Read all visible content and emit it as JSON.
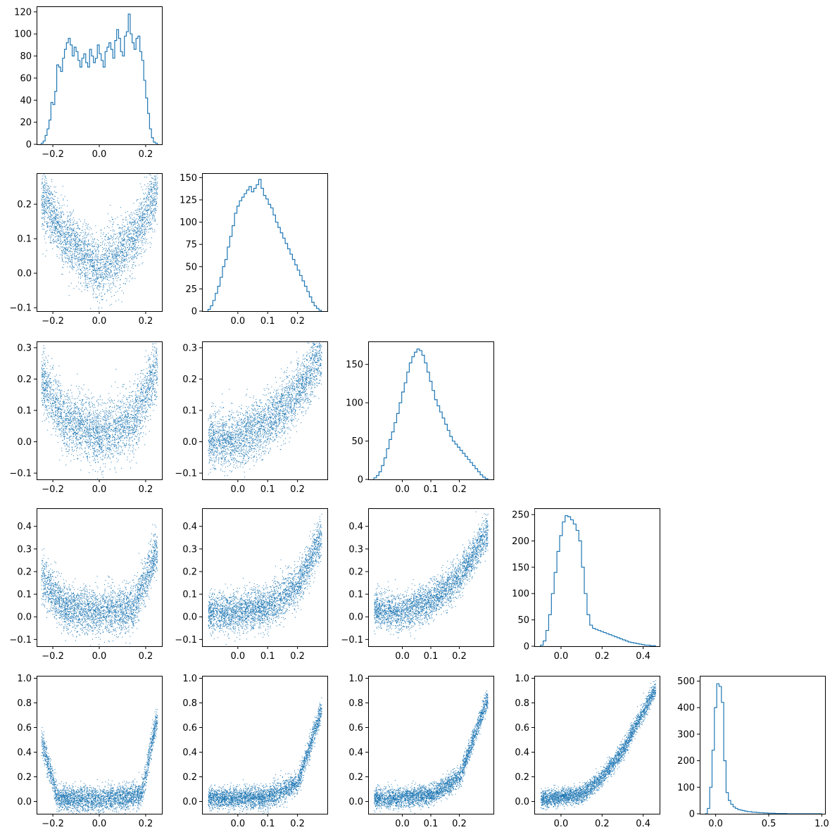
{
  "series_color": "#1f77b4",
  "chart_data": [
    {
      "id": "hist-1",
      "type": "bar",
      "style": "step",
      "row": 0,
      "col": 0,
      "bin_range": [
        -0.25,
        0.25
      ],
      "values": [
        1,
        3,
        8,
        14,
        22,
        38,
        36,
        48,
        72,
        70,
        66,
        78,
        86,
        92,
        96,
        90,
        80,
        88,
        84,
        76,
        70,
        78,
        82,
        74,
        70,
        86,
        80,
        74,
        78,
        90,
        82,
        76,
        70,
        84,
        88,
        92,
        86,
        78,
        94,
        104,
        96,
        84,
        80,
        98,
        102,
        118,
        100,
        92,
        86,
        96,
        98,
        84,
        76,
        58,
        42,
        28,
        14,
        6,
        2,
        1
      ],
      "xlim": [
        -0.27,
        0.27
      ],
      "ylim": [
        0,
        125
      ],
      "xticks": [
        -0.2,
        0.0,
        0.2
      ],
      "xtick_labels": [
        "−0.2",
        "0.0",
        "0.2"
      ],
      "yticks": [
        0,
        20,
        40,
        60,
        80,
        100,
        120
      ],
      "ytick_labels": [
        "0",
        "20",
        "40",
        "60",
        "80",
        "100",
        "120"
      ]
    },
    {
      "id": "scatter-2-1",
      "type": "scatter",
      "row": 1,
      "col": 0,
      "description_curve": "u-shape",
      "x_range": [
        -0.25,
        0.25
      ],
      "y_trend": [
        [
          -0.25,
          0.22
        ],
        [
          -0.15,
          0.1
        ],
        [
          0.0,
          0.01
        ],
        [
          0.15,
          0.1
        ],
        [
          0.25,
          0.24
        ]
      ],
      "y_spread": 0.045,
      "xlim": [
        -0.27,
        0.27
      ],
      "ylim": [
        -0.11,
        0.29
      ],
      "xticks": [
        -0.2,
        0.0,
        0.2
      ],
      "xtick_labels": [
        "−0.2",
        "0.0",
        "0.2"
      ],
      "yticks": [
        -0.1,
        0.0,
        0.1,
        0.2
      ],
      "ytick_labels": [
        "−0.1",
        "0.0",
        "0.1",
        "0.2"
      ]
    },
    {
      "id": "hist-2",
      "type": "bar",
      "style": "step",
      "row": 1,
      "col": 1,
      "bin_range": [
        -0.1,
        0.28
      ],
      "values": [
        2,
        6,
        12,
        20,
        28,
        38,
        50,
        58,
        72,
        84,
        96,
        110,
        118,
        124,
        128,
        132,
        136,
        140,
        134,
        138,
        142,
        148,
        138,
        130,
        126,
        120,
        116,
        108,
        100,
        94,
        88,
        82,
        76,
        70,
        64,
        58,
        52,
        46,
        40,
        34,
        28,
        22,
        16,
        10,
        6,
        3,
        1
      ],
      "xlim": [
        -0.12,
        0.3
      ],
      "ylim": [
        0,
        155
      ],
      "xticks": [
        0.0,
        0.1,
        0.2
      ],
      "xtick_labels": [
        "0.0",
        "0.1",
        "0.2"
      ],
      "yticks": [
        0,
        25,
        50,
        75,
        100,
        125,
        150
      ],
      "ytick_labels": [
        "0",
        "25",
        "50",
        "75",
        "100",
        "125",
        "150"
      ]
    },
    {
      "id": "scatter-3-1",
      "type": "scatter",
      "row": 2,
      "col": 0,
      "x_range": [
        -0.25,
        0.25
      ],
      "y_trend": [
        [
          -0.25,
          0.2
        ],
        [
          -0.15,
          0.07
        ],
        [
          0.0,
          0.02
        ],
        [
          0.15,
          0.07
        ],
        [
          0.25,
          0.24
        ]
      ],
      "y_spread": 0.05,
      "xlim": [
        -0.27,
        0.27
      ],
      "ylim": [
        -0.12,
        0.32
      ],
      "xticks": [
        -0.2,
        0.0,
        0.2
      ],
      "xtick_labels": [
        "−0.2",
        "0.0",
        "0.2"
      ],
      "yticks": [
        -0.1,
        0.0,
        0.1,
        0.2,
        0.3
      ],
      "ytick_labels": [
        "−0.1",
        "0.0",
        "0.1",
        "0.2",
        "0.3"
      ]
    },
    {
      "id": "scatter-3-2",
      "type": "scatter",
      "row": 2,
      "col": 1,
      "x_range": [
        -0.1,
        0.28
      ],
      "y_trend": [
        [
          -0.1,
          0.0
        ],
        [
          0.0,
          0.01
        ],
        [
          0.1,
          0.06
        ],
        [
          0.2,
          0.16
        ],
        [
          0.28,
          0.28
        ]
      ],
      "y_spread": 0.045,
      "xlim": [
        -0.12,
        0.3
      ],
      "ylim": [
        -0.12,
        0.32
      ],
      "xticks": [
        0.0,
        0.1,
        0.2
      ],
      "xtick_labels": [
        "0.0",
        "0.1",
        "0.2"
      ],
      "yticks": [
        -0.1,
        0.0,
        0.1,
        0.2,
        0.3
      ],
      "ytick_labels": [
        "−0.1",
        "0.0",
        "0.1",
        "0.2",
        "0.3"
      ]
    },
    {
      "id": "hist-3",
      "type": "bar",
      "style": "step",
      "row": 2,
      "col": 2,
      "bin_range": [
        -0.1,
        0.3
      ],
      "values": [
        2,
        5,
        10,
        18,
        28,
        40,
        52,
        62,
        74,
        86,
        100,
        114,
        126,
        140,
        152,
        160,
        166,
        170,
        168,
        162,
        152,
        140,
        128,
        116,
        104,
        96,
        88,
        80,
        72,
        64,
        56,
        50,
        46,
        42,
        38,
        34,
        30,
        26,
        22,
        18,
        14,
        10,
        6,
        3,
        1
      ],
      "xlim": [
        -0.12,
        0.32
      ],
      "ylim": [
        0,
        180
      ],
      "xticks": [
        0.0,
        0.1,
        0.2
      ],
      "xtick_labels": [
        "0.0",
        "0.1",
        "0.2"
      ],
      "yticks": [
        0,
        50,
        100,
        150
      ],
      "ytick_labels": [
        "0",
        "50",
        "100",
        "150"
      ]
    },
    {
      "id": "scatter-4-1",
      "type": "scatter",
      "row": 3,
      "col": 0,
      "x_range": [
        -0.25,
        0.25
      ],
      "y_trend": [
        [
          -0.25,
          0.18
        ],
        [
          -0.15,
          0.04
        ],
        [
          0.0,
          0.02
        ],
        [
          0.15,
          0.04
        ],
        [
          0.25,
          0.3
        ]
      ],
      "y_spread": 0.05,
      "xlim": [
        -0.27,
        0.27
      ],
      "ylim": [
        -0.13,
        0.48
      ],
      "xticks": [
        -0.2,
        0.0,
        0.2
      ],
      "xtick_labels": [
        "−0.2",
        "0.0",
        "0.2"
      ],
      "yticks": [
        -0.1,
        0.0,
        0.1,
        0.2,
        0.3,
        0.4
      ],
      "ytick_labels": [
        "−0.1",
        "0.0",
        "0.1",
        "0.2",
        "0.3",
        "0.4"
      ]
    },
    {
      "id": "scatter-4-2",
      "type": "scatter",
      "row": 3,
      "col": 1,
      "x_range": [
        -0.1,
        0.28
      ],
      "y_trend": [
        [
          -0.1,
          0.02
        ],
        [
          0.0,
          0.02
        ],
        [
          0.1,
          0.04
        ],
        [
          0.2,
          0.14
        ],
        [
          0.28,
          0.36
        ]
      ],
      "y_spread": 0.045,
      "xlim": [
        -0.12,
        0.3
      ],
      "ylim": [
        -0.13,
        0.48
      ],
      "xticks": [
        0.0,
        0.1,
        0.2
      ],
      "xtick_labels": [
        "0.0",
        "0.1",
        "0.2"
      ],
      "yticks": [
        -0.1,
        0.0,
        0.1,
        0.2,
        0.3,
        0.4
      ],
      "ytick_labels": [
        "−0.1",
        "0.0",
        "0.1",
        "0.2",
        "0.3",
        "0.4"
      ]
    },
    {
      "id": "scatter-4-3",
      "type": "scatter",
      "row": 3,
      "col": 2,
      "x_range": [
        -0.1,
        0.3
      ],
      "y_trend": [
        [
          -0.1,
          0.03
        ],
        [
          0.0,
          0.02
        ],
        [
          0.1,
          0.07
        ],
        [
          0.2,
          0.18
        ],
        [
          0.3,
          0.38
        ]
      ],
      "y_spread": 0.04,
      "xlim": [
        -0.12,
        0.32
      ],
      "ylim": [
        -0.13,
        0.48
      ],
      "xticks": [
        0.0,
        0.1,
        0.2
      ],
      "xtick_labels": [
        "0.0",
        "0.1",
        "0.2"
      ],
      "yticks": [
        -0.1,
        0.0,
        0.1,
        0.2,
        0.3,
        0.4
      ],
      "ytick_labels": [
        "−0.1",
        "0.0",
        "0.1",
        "0.2",
        "0.3",
        "0.4"
      ]
    },
    {
      "id": "hist-4",
      "type": "bar",
      "style": "step",
      "row": 3,
      "col": 3,
      "bin_range": [
        -0.1,
        0.46
      ],
      "values": [
        2,
        10,
        30,
        60,
        100,
        140,
        180,
        210,
        236,
        248,
        246,
        240,
        232,
        220,
        200,
        150,
        100,
        60,
        40,
        34,
        32,
        30,
        28,
        26,
        24,
        22,
        20,
        18,
        16,
        14,
        12,
        10,
        8,
        7,
        6,
        5,
        4,
        3,
        2,
        2,
        1,
        1
      ],
      "xlim": [
        -0.13,
        0.48
      ],
      "ylim": [
        0,
        262
      ],
      "xticks": [
        0.0,
        0.2,
        0.4
      ],
      "xtick_labels": [
        "0.0",
        "0.2",
        "0.4"
      ],
      "yticks": [
        0,
        50,
        100,
        150,
        200,
        250
      ],
      "ytick_labels": [
        "0",
        "50",
        "100",
        "150",
        "200",
        "250"
      ]
    },
    {
      "id": "scatter-5-1",
      "type": "scatter",
      "row": 4,
      "col": 0,
      "x_range": [
        -0.25,
        0.25
      ],
      "y_trend": [
        [
          -0.25,
          0.5
        ],
        [
          -0.18,
          0.03
        ],
        [
          0.0,
          0.02
        ],
        [
          0.18,
          0.05
        ],
        [
          0.25,
          0.7
        ]
      ],
      "y_spread": 0.05,
      "xlim": [
        -0.27,
        0.27
      ],
      "ylim": [
        -0.1,
        1.02
      ],
      "xticks": [
        -0.2,
        0.0,
        0.2
      ],
      "xtick_labels": [
        "−0.2",
        "0.0",
        "0.2"
      ],
      "yticks": [
        0.0,
        0.2,
        0.4,
        0.6,
        0.8,
        1.0
      ],
      "ytick_labels": [
        "0.0",
        "0.2",
        "0.4",
        "0.6",
        "0.8",
        "1.0"
      ]
    },
    {
      "id": "scatter-5-2",
      "type": "scatter",
      "row": 4,
      "col": 1,
      "x_range": [
        -0.1,
        0.28
      ],
      "y_trend": [
        [
          -0.1,
          0.03
        ],
        [
          0.1,
          0.03
        ],
        [
          0.2,
          0.15
        ],
        [
          0.28,
          0.75
        ]
      ],
      "y_spread": 0.045,
      "xlim": [
        -0.12,
        0.3
      ],
      "ylim": [
        -0.1,
        1.02
      ],
      "xticks": [
        0.0,
        0.1,
        0.2
      ],
      "xtick_labels": [
        "0.0",
        "0.1",
        "0.2"
      ],
      "yticks": [
        0.0,
        0.2,
        0.4,
        0.6,
        0.8,
        1.0
      ],
      "ytick_labels": [
        "0.0",
        "0.2",
        "0.4",
        "0.6",
        "0.8",
        "1.0"
      ]
    },
    {
      "id": "scatter-5-3",
      "type": "scatter",
      "row": 4,
      "col": 2,
      "x_range": [
        -0.1,
        0.3
      ],
      "y_trend": [
        [
          -0.1,
          0.02
        ],
        [
          0.1,
          0.05
        ],
        [
          0.2,
          0.2
        ],
        [
          0.3,
          0.85
        ]
      ],
      "y_spread": 0.04,
      "xlim": [
        -0.12,
        0.32
      ],
      "ylim": [
        -0.1,
        1.02
      ],
      "xticks": [
        0.0,
        0.1,
        0.2
      ],
      "xtick_labels": [
        "0.0",
        "0.1",
        "0.2"
      ],
      "yticks": [
        0.0,
        0.2,
        0.4,
        0.6,
        0.8,
        1.0
      ],
      "ytick_labels": [
        "0.0",
        "0.2",
        "0.4",
        "0.6",
        "0.8",
        "1.0"
      ]
    },
    {
      "id": "scatter-5-4",
      "type": "scatter",
      "row": 4,
      "col": 3,
      "x_range": [
        -0.1,
        0.46
      ],
      "y_trend": [
        [
          -0.1,
          0.02
        ],
        [
          0.1,
          0.06
        ],
        [
          0.2,
          0.2
        ],
        [
          0.3,
          0.42
        ],
        [
          0.46,
          0.92
        ]
      ],
      "y_spread": 0.035,
      "xlim": [
        -0.13,
        0.48
      ],
      "ylim": [
        -0.1,
        1.02
      ],
      "xticks": [
        0.0,
        0.2,
        0.4
      ],
      "xtick_labels": [
        "0.0",
        "0.2",
        "0.4"
      ],
      "yticks": [
        0.0,
        0.2,
        0.4,
        0.6,
        0.8,
        1.0
      ],
      "ytick_labels": [
        "0.0",
        "0.2",
        "0.4",
        "0.6",
        "0.8",
        "1.0"
      ]
    },
    {
      "id": "hist-5",
      "type": "bar",
      "style": "step",
      "row": 4,
      "col": 4,
      "bin_range": [
        -0.1,
        1.0
      ],
      "values": [
        0,
        20,
        100,
        240,
        400,
        490,
        480,
        420,
        200,
        80,
        50,
        36,
        26,
        20,
        16,
        14,
        12,
        10,
        8,
        8,
        6,
        6,
        5,
        4,
        4,
        3,
        3,
        2,
        2,
        2,
        1,
        1,
        1,
        1,
        1,
        0,
        0,
        0,
        0,
        0,
        0,
        0,
        0,
        0,
        0,
        0,
        0,
        0,
        0,
        0
      ],
      "xlim": [
        -0.15,
        1.03
      ],
      "ylim": [
        0,
        520
      ],
      "xticks": [
        0.0,
        0.5,
        1.0
      ],
      "xtick_labels": [
        "0.0",
        "0.5",
        "1.0"
      ],
      "yticks": [
        0,
        100,
        200,
        300,
        400,
        500
      ],
      "ytick_labels": [
        "0",
        "100",
        "200",
        "300",
        "400",
        "500"
      ]
    }
  ]
}
